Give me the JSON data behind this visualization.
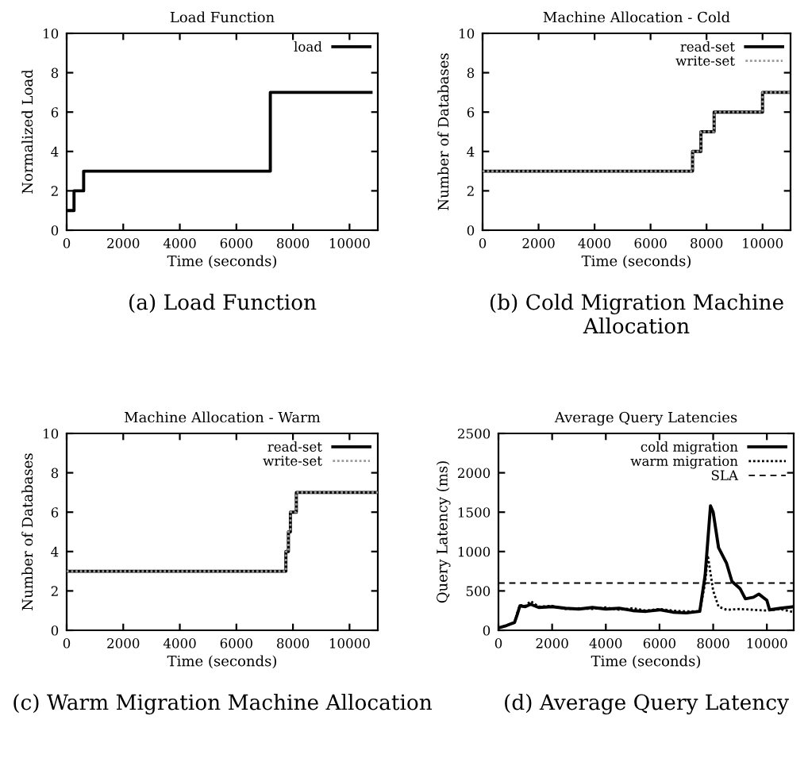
{
  "chart_data": [
    {
      "type": "step",
      "title": "Load Function",
      "xlabel": "Time (seconds)",
      "ylabel": "Normalized Load",
      "annotations": [
        "(a) Load Function"
      ],
      "xlim": [
        0,
        11000
      ],
      "xticks": [
        0,
        2000,
        4000,
        6000,
        8000,
        10000
      ],
      "ylim": [
        0,
        10
      ],
      "yticks": [
        0,
        2,
        4,
        6,
        8,
        10
      ],
      "legend": "top right",
      "series": [
        {
          "name": "load",
          "color": "#000000",
          "line_style": "solid",
          "x": [
            0,
            260,
            600,
            7200,
            10760
          ],
          "values": [
            1,
            2,
            3,
            7,
            7
          ]
        }
      ]
    },
    {
      "type": "step",
      "title": "Machine Allocation - Cold",
      "xlabel": "Time (seconds)",
      "ylabel": "Number of Databases",
      "annotations": [
        "(b) Cold Migration Machine Allocation"
      ],
      "xlim": [
        0,
        11000
      ],
      "xticks": [
        0,
        2000,
        4000,
        6000,
        8000,
        10000
      ],
      "ylim": [
        0,
        10
      ],
      "yticks": [
        0,
        2,
        4,
        6,
        8,
        10
      ],
      "legend": "top right",
      "series": [
        {
          "name": "read-set",
          "color": "#000000",
          "line_style": "solid",
          "x": [
            0,
            7500,
            7800,
            8270,
            10000,
            11000
          ],
          "values": [
            3,
            4,
            5,
            6,
            7,
            7
          ]
        },
        {
          "name": "write-set",
          "color": "#9a9a9a",
          "line_style": "dotted",
          "x": [
            0,
            7500,
            7800,
            8270,
            10000,
            11000
          ],
          "values": [
            3,
            4,
            5,
            6,
            7,
            7
          ]
        }
      ]
    },
    {
      "type": "step",
      "title": "Machine Allocation - Warm",
      "xlabel": "Time (seconds)",
      "ylabel": "Number of Databases",
      "annotations": [
        "(c) Warm Migration Machine Allocation"
      ],
      "xlim": [
        0,
        11000
      ],
      "xticks": [
        0,
        2000,
        4000,
        6000,
        8000,
        10000
      ],
      "ylim": [
        0,
        10
      ],
      "yticks": [
        0,
        2,
        4,
        6,
        8,
        10
      ],
      "legend": "top right",
      "series": [
        {
          "name": "read-set",
          "color": "#000000",
          "line_style": "solid",
          "x": [
            0,
            7750,
            7840,
            7910,
            8120,
            11000
          ],
          "values": [
            3,
            4,
            5,
            6,
            7,
            7
          ]
        },
        {
          "name": "write-set",
          "color": "#9a9a9a",
          "line_style": "dotted",
          "x": [
            0,
            7750,
            7840,
            7910,
            8120,
            11000
          ],
          "values": [
            3,
            4,
            5,
            6,
            7,
            7
          ]
        }
      ]
    },
    {
      "type": "line",
      "title": "Average Query Latencies",
      "xlabel": "Time (seconds)",
      "ylabel": "Query Latency (ms)",
      "annotations": [
        "(d) Average Query Latency"
      ],
      "xlim": [
        0,
        11000
      ],
      "xticks": [
        0,
        2000,
        4000,
        6000,
        8000,
        10000
      ],
      "ylim": [
        0,
        2500
      ],
      "yticks": [
        0,
        500,
        1000,
        1500,
        2000,
        2500
      ],
      "legend": "top right",
      "series": [
        {
          "name": "cold migration",
          "color": "#000000",
          "line_style": "solid",
          "x": [
            0,
            300,
            600,
            700,
            800,
            1000,
            1200,
            1500,
            2000,
            2500,
            3000,
            3500,
            4000,
            4500,
            5000,
            5500,
            6000,
            6500,
            7000,
            7500,
            7700,
            7900,
            8000,
            8200,
            8500,
            8700,
            9000,
            9200,
            9500,
            9700,
            10000,
            10100,
            10500,
            11000
          ],
          "values": [
            30,
            60,
            100,
            200,
            310,
            300,
            330,
            290,
            300,
            280,
            270,
            290,
            270,
            280,
            250,
            240,
            260,
            230,
            220,
            240,
            700,
            1580,
            1500,
            1050,
            850,
            620,
            530,
            400,
            420,
            460,
            380,
            260,
            280,
            300
          ]
        },
        {
          "name": "warm migration",
          "color": "#000000",
          "line_style": "dotted",
          "x": [
            0,
            300,
            600,
            700,
            800,
            1000,
            1200,
            1500,
            2000,
            2500,
            3000,
            3500,
            4000,
            4500,
            5000,
            5500,
            6000,
            6500,
            7000,
            7500,
            7700,
            7800,
            8000,
            8200,
            8500,
            9000,
            9500,
            10000,
            10500,
            11000
          ],
          "values": [
            30,
            60,
            100,
            220,
            320,
            310,
            370,
            300,
            310,
            270,
            280,
            270,
            290,
            260,
            280,
            250,
            270,
            250,
            240,
            240,
            600,
            950,
            500,
            300,
            260,
            270,
            260,
            250,
            270,
            230
          ]
        }
      ],
      "ref_lines": [
        {
          "axis": "y",
          "value": 600,
          "label": "SLA",
          "color": "#000000",
          "line_style": "dashed"
        }
      ]
    }
  ]
}
